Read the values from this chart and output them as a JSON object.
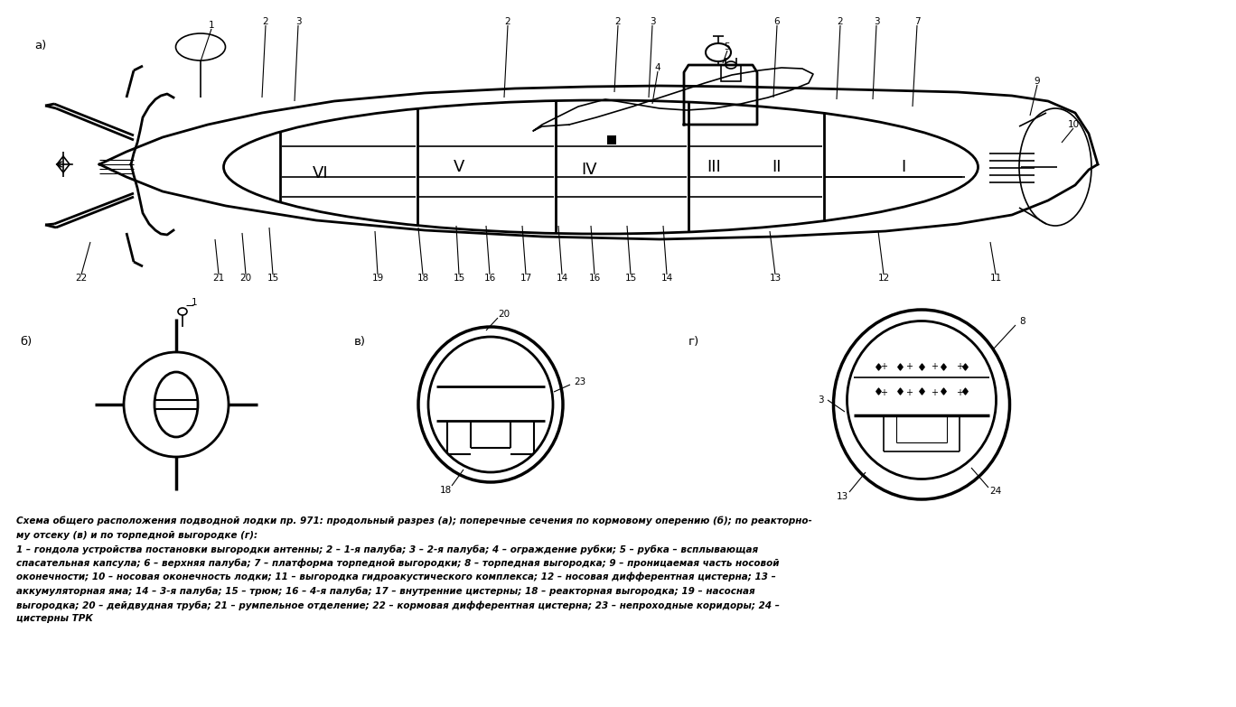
{
  "bg_color": "#ffffff",
  "lc": "#000000",
  "caption_line1": "Схема общего расположения подводной лодки пр. 971: продольный разрез (а); поперечные сечения по кормовому оперению (б); по реакторно-",
  "caption_line2": "му отсеку (в) и по торпедной выгородке (г):",
  "desc_lines": [
    "1 – гондола устройства постановки выгородки антенны; 2 – 1-я палуба; 3 – 2-я палуба; 4 – ограждение рубки; 5 – рубка – всплывающая",
    "спасательная капсула; 6 – верхняя палуба; 7 – платформа торпедной выгородки; 8 – торпедная выгородка; 9 – проницаемая часть носовой",
    "оконечности; 10 – носовая оконечность лодки; 11 – выгородка гидроакустического комплекса; 12 – носовая дифферентная цистерна; 13 –",
    "аккумуляторная яма; 14 – 3-я палуба; 15 – трюм; 16 – 4-я палуба; 17 – внутренние цистерны; 18 – реакторная выгородка; 19 – насосная",
    "выгородка; 20 – дейдвудная труба; 21 – румпельное отделение; 22 – кормовая дифферентная цистерна; 23 – непроходные коридоры; 24 –",
    "цистерны ТРК"
  ]
}
